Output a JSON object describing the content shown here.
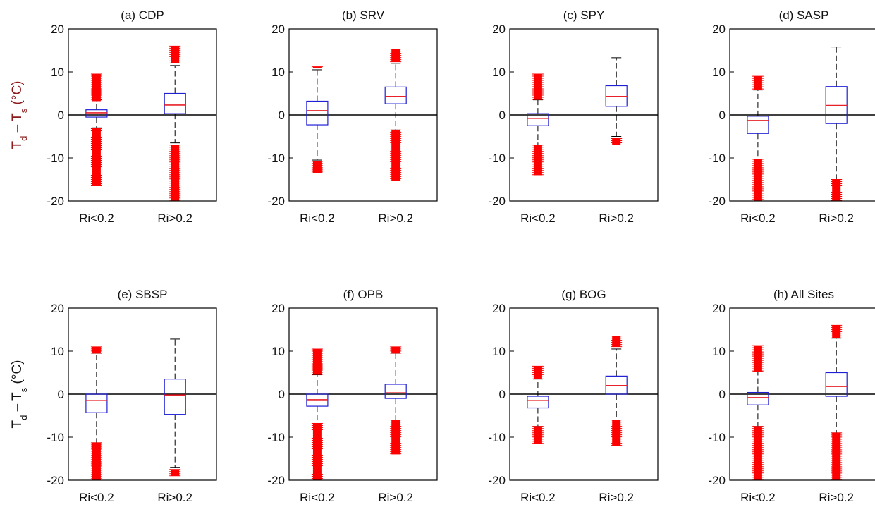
{
  "figure": {
    "ylabel": "T_d – T_s (°C)",
    "colors": {
      "box": "#1f1fd6",
      "median": "#e8202a",
      "outlier": "#ff0000",
      "whisker": "#000000",
      "zero_line": "#000000"
    }
  },
  "chart_data": [
    {
      "type": "boxplot",
      "title": "(a) CDP",
      "ylim": [
        -20,
        20
      ],
      "yticks": [
        -20,
        -10,
        0,
        10,
        20
      ],
      "categories": [
        "Ri<0.2",
        "Ri>0.2"
      ],
      "boxes": [
        {
          "q1": -0.5,
          "median": 0.5,
          "q3": 1.2,
          "whisker_low": -3,
          "whisker_high": 3.5,
          "outliers": [
            3.2,
            9.5,
            -3.2,
            -16.5
          ]
        },
        {
          "q1": 0.3,
          "median": 2.3,
          "q3": 5,
          "whisker_low": -6.5,
          "whisker_high": 11.5,
          "outliers": [
            12,
            16,
            -7,
            -20
          ]
        }
      ]
    },
    {
      "type": "boxplot",
      "title": "(b) SRV",
      "ylim": [
        -20,
        20
      ],
      "yticks": [
        -20,
        -10,
        0,
        10,
        20
      ],
      "categories": [
        "Ri<0.2",
        "Ri>0.2"
      ],
      "boxes": [
        {
          "q1": -2.3,
          "median": 1,
          "q3": 3.2,
          "whisker_low": -10.5,
          "whisker_high": 10.5,
          "outliers": [
            -10.8,
            -13.5,
            11.2,
            11.2
          ]
        },
        {
          "q1": 2.6,
          "median": 4.3,
          "q3": 6.5,
          "whisker_low": -3.5,
          "whisker_high": 12,
          "outliers": [
            12.3,
            15.3,
            -3.5,
            -15.3
          ]
        }
      ]
    },
    {
      "type": "boxplot",
      "title": "(c) SPY",
      "ylim": [
        -20,
        20
      ],
      "yticks": [
        -20,
        -10,
        0,
        10,
        20
      ],
      "categories": [
        "Ri<0.2",
        "Ri>0.2"
      ],
      "boxes": [
        {
          "q1": -2.5,
          "median": -0.8,
          "q3": 0.3,
          "whisker_low": -7,
          "whisker_high": 3.5,
          "outliers": [
            3.5,
            9.5,
            -7,
            -14
          ]
        },
        {
          "q1": 2,
          "median": 4.3,
          "q3": 6.8,
          "whisker_low": -5,
          "whisker_high": 13.3,
          "outliers": [
            -5.5,
            -7
          ]
        }
      ]
    },
    {
      "type": "boxplot",
      "title": "(d) SASP",
      "ylim": [
        -20,
        20
      ],
      "yticks": [
        -20,
        -10,
        0,
        10,
        20
      ],
      "categories": [
        "Ri<0.2",
        "Ri>0.2"
      ],
      "boxes": [
        {
          "q1": -4.3,
          "median": -1.3,
          "q3": -0.3,
          "whisker_low": -10.3,
          "whisker_high": 5.8,
          "outliers": [
            5.8,
            9,
            -10.3,
            -20
          ]
        },
        {
          "q1": -2,
          "median": 2.2,
          "q3": 6.6,
          "whisker_low": -15,
          "whisker_high": 15.8,
          "outliers": [
            -15,
            -20
          ]
        }
      ]
    },
    {
      "type": "boxplot",
      "title": "(e) SBSP",
      "ylim": [
        -20,
        20
      ],
      "yticks": [
        -20,
        -10,
        0,
        10,
        20
      ],
      "categories": [
        "Ri<0.2",
        "Ri>0.2"
      ],
      "boxes": [
        {
          "q1": -4.3,
          "median": -1.5,
          "q3": 0,
          "whisker_low": -11.3,
          "whisker_high": 9.5,
          "outliers": [
            9.5,
            11,
            -11.3,
            -20
          ]
        },
        {
          "q1": -4.7,
          "median": -0.2,
          "q3": 3.5,
          "whisker_low": -17,
          "whisker_high": 12.8,
          "outliers": [
            -17.5,
            -19
          ]
        }
      ]
    },
    {
      "type": "boxplot",
      "title": "(f) OPB",
      "ylim": [
        -20,
        20
      ],
      "yticks": [
        -20,
        -10,
        0,
        10,
        20
      ],
      "categories": [
        "Ri<0.2",
        "Ri>0.2"
      ],
      "boxes": [
        {
          "q1": -2.8,
          "median": -1.3,
          "q3": 0,
          "whisker_low": -6.8,
          "whisker_high": 4.5,
          "outliers": [
            4.5,
            10.5,
            -6.8,
            -20
          ]
        },
        {
          "q1": -1,
          "median": 0.3,
          "q3": 2.3,
          "whisker_low": -6,
          "whisker_high": 9.5,
          "outliers": [
            9.5,
            11,
            -6,
            -14
          ]
        }
      ]
    },
    {
      "type": "boxplot",
      "title": "(g) BOG",
      "ylim": [
        -20,
        20
      ],
      "yticks": [
        -20,
        -10,
        0,
        10,
        20
      ],
      "categories": [
        "Ri<0.2",
        "Ri>0.2"
      ],
      "boxes": [
        {
          "q1": -3.2,
          "median": -1.5,
          "q3": -0.5,
          "whisker_low": -7.5,
          "whisker_high": 3.5,
          "outliers": [
            3.5,
            6.5,
            -7.5,
            -11.5
          ]
        },
        {
          "q1": 0,
          "median": 2,
          "q3": 4.2,
          "whisker_low": -6,
          "whisker_high": 10.5,
          "outliers": [
            11,
            13.5,
            -6,
            -12
          ]
        }
      ]
    },
    {
      "type": "boxplot",
      "title": "(h) All Sites",
      "ylim": [
        -20,
        20
      ],
      "yticks": [
        -20,
        -10,
        0,
        10,
        20
      ],
      "categories": [
        "Ri<0.2",
        "Ri>0.2"
      ],
      "boxes": [
        {
          "q1": -2.5,
          "median": -0.8,
          "q3": 0.4,
          "whisker_low": -7.5,
          "whisker_high": 5.2,
          "outliers": [
            5.2,
            11.3,
            -7.5,
            -20
          ]
        },
        {
          "q1": -0.5,
          "median": 1.8,
          "q3": 5,
          "whisker_low": -9,
          "whisker_high": 13,
          "outliers": [
            13,
            16,
            -9,
            -20
          ]
        }
      ]
    }
  ]
}
